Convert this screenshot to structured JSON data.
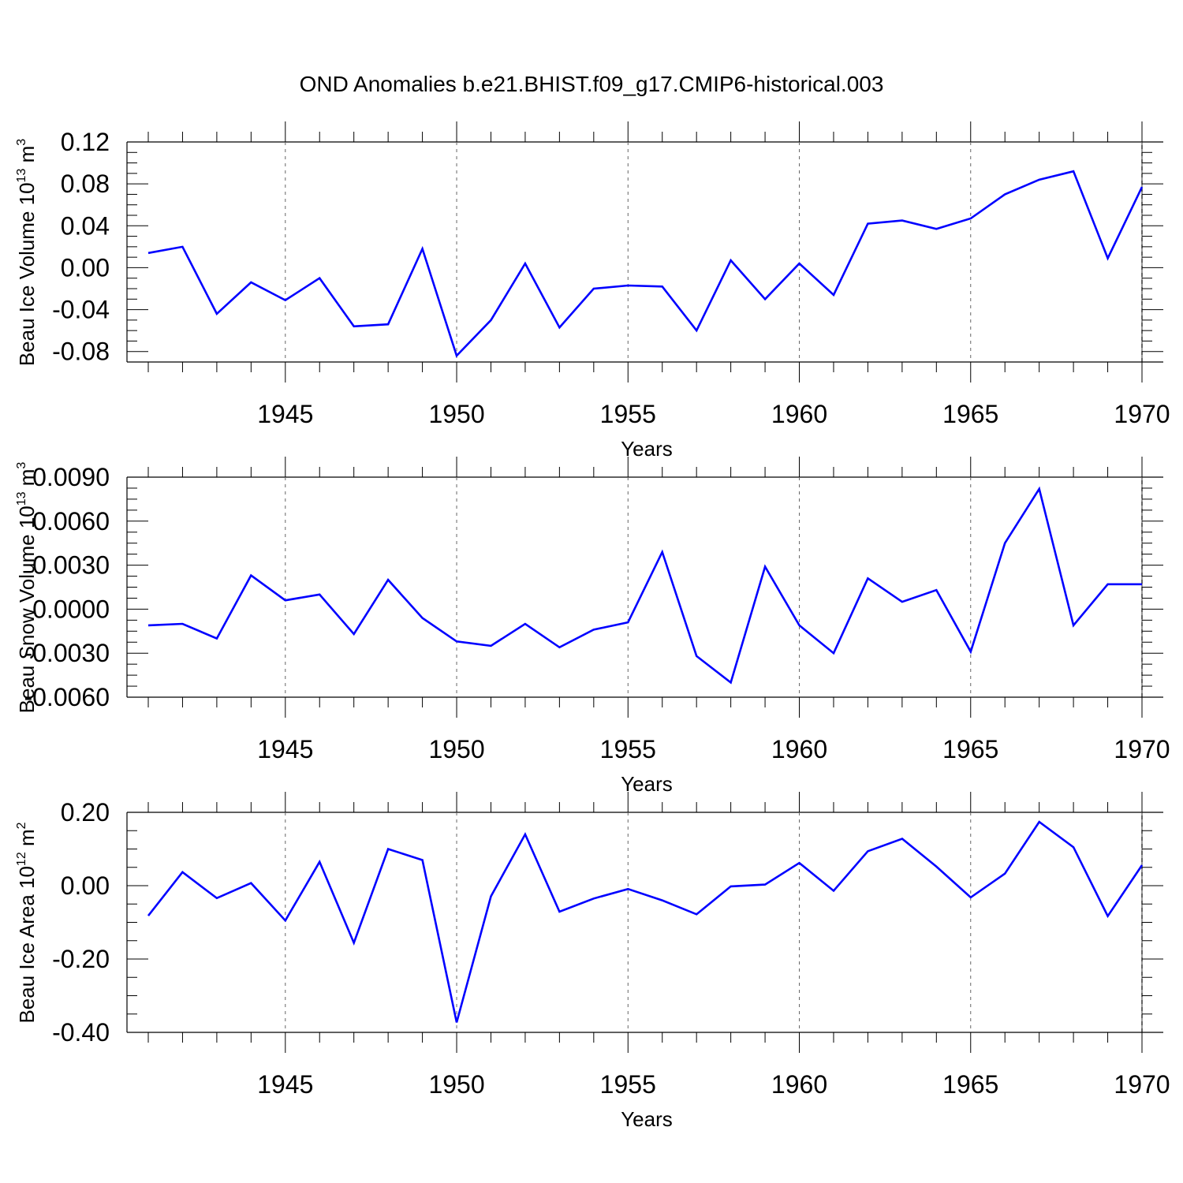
{
  "title": "OND Anomalies b.e21.BHIST.f09_g17.CMIP6-historical.003",
  "colors": {
    "series": "#0000ff",
    "axis": "#000000",
    "grid": "#666666"
  },
  "chart_data": [
    {
      "type": "line",
      "ylabel": "Beau Ice Volume 10",
      "ylabel_exp": "13",
      "ylabel_unit": " m",
      "ylabel_unit_exp": "3",
      "xlabel": "Years",
      "xlim": [
        1941,
        1970
      ],
      "ylim": [
        -0.09,
        0.12
      ],
      "yticks": [
        -0.08,
        -0.04,
        0.0,
        0.04,
        0.08,
        0.12
      ],
      "ytick_labels": [
        "-0.08",
        "-0.04",
        "0.00",
        "0.04",
        "0.08",
        "0.12"
      ],
      "xticks": [
        1945,
        1950,
        1955,
        1960,
        1965,
        1970
      ],
      "xtick_labels": [
        "1945",
        "1950",
        "1955",
        "1960",
        "1965",
        "1970"
      ],
      "grid_x": true,
      "series": [
        {
          "name": "Beau Ice Volume",
          "x": [
            1941,
            1942,
            1943,
            1944,
            1945,
            1946,
            1947,
            1948,
            1949,
            1950,
            1951,
            1952,
            1953,
            1954,
            1955,
            1956,
            1957,
            1958,
            1959,
            1960,
            1961,
            1962,
            1963,
            1964,
            1965,
            1966,
            1967,
            1968,
            1969,
            1970
          ],
          "values": [
            0.014,
            0.02,
            -0.044,
            -0.014,
            -0.031,
            -0.01,
            -0.056,
            -0.054,
            0.018,
            -0.084,
            -0.05,
            0.004,
            -0.057,
            -0.02,
            -0.017,
            -0.018,
            -0.06,
            0.007,
            -0.03,
            0.004,
            -0.026,
            0.042,
            0.045,
            0.037,
            0.047,
            0.07,
            0.084,
            0.092,
            0.009,
            0.077
          ]
        }
      ]
    },
    {
      "type": "line",
      "ylabel": "Beau Snow Volume 10",
      "ylabel_exp": "13",
      "ylabel_unit": " m",
      "ylabel_unit_exp": "3",
      "xlabel": "Years",
      "xlim": [
        1941,
        1970
      ],
      "ylim": [
        -0.006,
        0.009
      ],
      "yticks": [
        -0.006,
        -0.003,
        0.0,
        0.003,
        0.006,
        0.009
      ],
      "ytick_labels": [
        "-0.0060",
        "-0.0030",
        "0.0000",
        "0.0030",
        "0.0060",
        "0.0090"
      ],
      "xticks": [
        1945,
        1950,
        1955,
        1960,
        1965,
        1970
      ],
      "xtick_labels": [
        "1945",
        "1950",
        "1955",
        "1960",
        "1965",
        "1970"
      ],
      "grid_x": true,
      "series": [
        {
          "name": "Beau Snow Volume",
          "x": [
            1941,
            1942,
            1943,
            1944,
            1945,
            1946,
            1947,
            1948,
            1949,
            1950,
            1951,
            1952,
            1953,
            1954,
            1955,
            1956,
            1957,
            1958,
            1959,
            1960,
            1961,
            1962,
            1963,
            1964,
            1965,
            1966,
            1967,
            1968,
            1969,
            1970
          ],
          "values": [
            -0.0011,
            -0.001,
            -0.002,
            0.0023,
            0.0006,
            0.001,
            -0.0017,
            0.002,
            -0.0006,
            -0.0022,
            -0.0025,
            -0.001,
            -0.0026,
            -0.0014,
            -0.0009,
            0.0039,
            -0.0032,
            -0.005,
            0.0029,
            -0.0011,
            -0.003,
            0.0021,
            0.0005,
            0.0013,
            -0.0029,
            0.0045,
            0.0082,
            -0.0011,
            0.0017,
            0.0017
          ]
        }
      ]
    },
    {
      "type": "line",
      "ylabel": "Beau Ice Area 10",
      "ylabel_exp": "12",
      "ylabel_unit": " m",
      "ylabel_unit_exp": "2",
      "xlabel": "Years",
      "xlim": [
        1941,
        1970
      ],
      "ylim": [
        -0.4,
        0.2
      ],
      "yticks": [
        -0.4,
        -0.2,
        0.0,
        0.2
      ],
      "ytick_labels": [
        "-0.40",
        "-0.20",
        "0.00",
        "0.20"
      ],
      "xticks": [
        1945,
        1950,
        1955,
        1960,
        1965,
        1970
      ],
      "xtick_labels": [
        "1945",
        "1950",
        "1955",
        "1960",
        "1965",
        "1970"
      ],
      "grid_x": true,
      "series": [
        {
          "name": "Beau Ice Area",
          "x": [
            1941,
            1942,
            1943,
            1944,
            1945,
            1946,
            1947,
            1948,
            1949,
            1950,
            1951,
            1952,
            1953,
            1954,
            1955,
            1956,
            1957,
            1958,
            1959,
            1960,
            1961,
            1962,
            1963,
            1964,
            1965,
            1966,
            1967,
            1968,
            1969,
            1970
          ],
          "values": [
            -0.082,
            0.037,
            -0.034,
            0.007,
            -0.095,
            0.065,
            -0.156,
            0.1,
            0.07,
            -0.373,
            -0.029,
            0.14,
            -0.071,
            -0.035,
            -0.009,
            -0.04,
            -0.078,
            -0.002,
            0.003,
            0.062,
            -0.014,
            0.094,
            0.128,
            0.052,
            -0.032,
            0.033,
            0.174,
            0.105,
            -0.083,
            0.056
          ]
        }
      ]
    }
  ]
}
